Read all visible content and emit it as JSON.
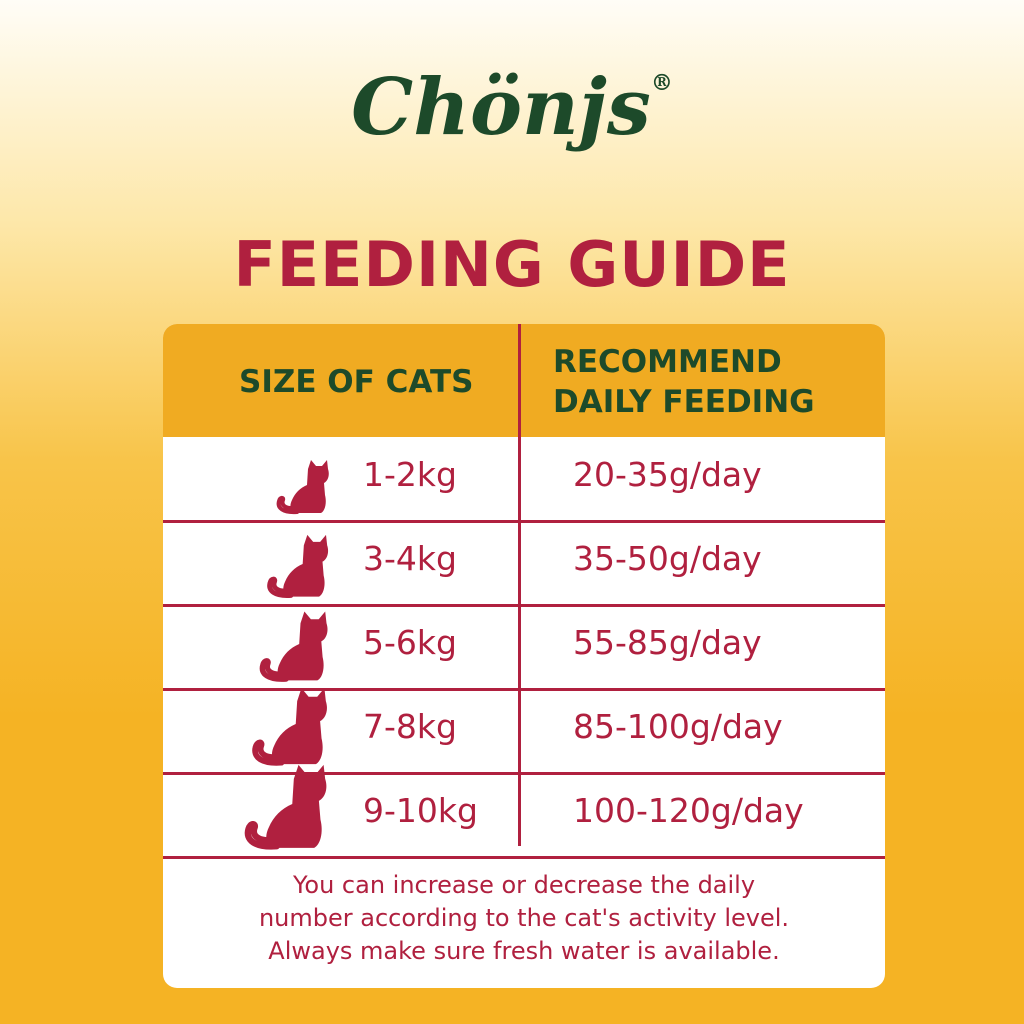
{
  "brand": {
    "name": "Chönjs",
    "mark": "®"
  },
  "title": "FEEDING GUIDE",
  "table": {
    "headers": [
      "SIZE OF CATS",
      "RECOMMEND DAILY FEEDING"
    ],
    "rows": [
      [
        "1-2kg",
        "20-35g/day"
      ],
      [
        "3-4kg",
        "35-50g/day"
      ],
      [
        "5-6kg",
        "55-85g/day"
      ],
      [
        "7-8kg",
        "85-100g/day"
      ],
      [
        "9-10kg",
        "100-120g/day"
      ]
    ]
  },
  "note": [
    "You can increase or decrease the daily",
    "number according to the cat's activity level.",
    "Always make sure fresh water is available."
  ]
}
